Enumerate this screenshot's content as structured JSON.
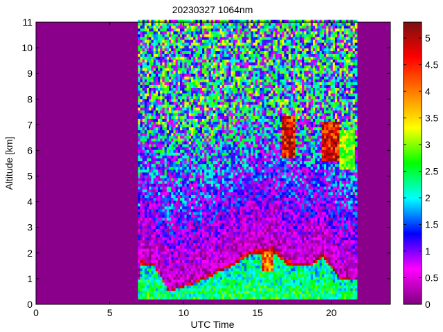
{
  "chart_data": {
    "type": "heatmap",
    "title": "20230327 1064nm",
    "xlabel": "UTC Time",
    "ylabel": "Altitude [km]",
    "xlim": [
      0,
      24
    ],
    "ylim": [
      0,
      11
    ],
    "x_ticks": [
      0,
      5,
      10,
      15,
      20
    ],
    "y_ticks": [
      0,
      1,
      2,
      3,
      4,
      5,
      6,
      7,
      8,
      9,
      10,
      11
    ],
    "colorbar": {
      "range": [
        0,
        5.3
      ],
      "ticks": [
        0,
        0.5,
        1,
        1.5,
        2,
        2.5,
        3,
        3.5,
        4,
        4.5,
        5
      ],
      "tick_labels": [
        "0",
        "0.5",
        "1",
        "1.5",
        "2",
        "2.5",
        "3",
        "3.5",
        "4",
        "4.5",
        "5"
      ],
      "colormap": [
        "#800080",
        "#ff00ff",
        "#0000ff",
        "#00ffff",
        "#00ff00",
        "#ffff00",
        "#ff8000",
        "#ff0000",
        "#7a1010"
      ]
    },
    "data_extent": {
      "time_start": 6.9,
      "time_end": 21.6
    },
    "background_color": "#8b008b",
    "features": {
      "boundary_layer_top": [
        [
          7.0,
          1.7
        ],
        [
          8.0,
          1.65
        ],
        [
          9.0,
          0.55
        ],
        [
          10.5,
          0.85
        ],
        [
          12.0,
          1.25
        ],
        [
          13.5,
          1.7
        ],
        [
          14.5,
          2.1
        ],
        [
          16.0,
          2.25
        ],
        [
          17.0,
          1.7
        ],
        [
          18.5,
          1.6
        ],
        [
          19.5,
          2.0
        ],
        [
          20.5,
          1.1
        ],
        [
          21.6,
          1.0
        ]
      ],
      "cloud_layers": [
        {
          "t_start": 16.6,
          "t_end": 17.5,
          "base": 5.7,
          "top": 7.4,
          "value": 5.2
        },
        {
          "t_start": 19.3,
          "t_end": 20.6,
          "base": 5.6,
          "top": 7.1,
          "value": 5.2
        },
        {
          "t_start": 20.6,
          "t_end": 21.6,
          "base": 5.3,
          "top": 6.8,
          "value": 3.2
        },
        {
          "t_start": 15.3,
          "t_end": 16.1,
          "base": 1.3,
          "top": 2.1,
          "value": 4.5
        }
      ]
    }
  }
}
